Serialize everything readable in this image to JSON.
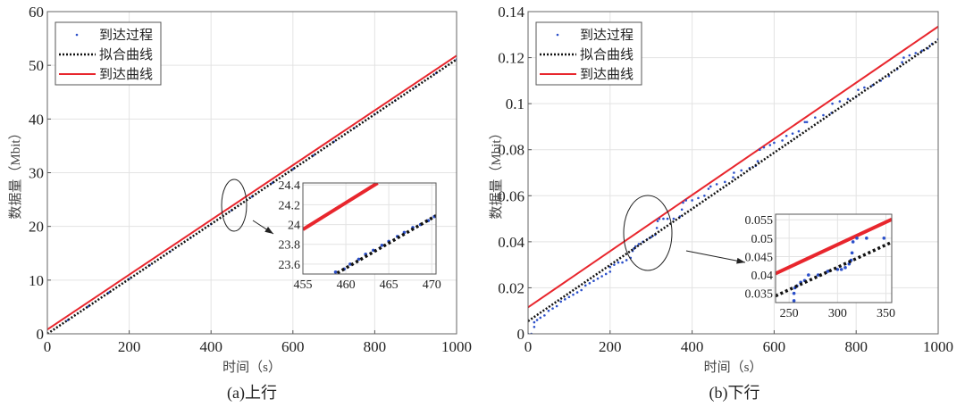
{
  "colors": {
    "arrival_points": "#2b4fc9",
    "fit_line": "#111111",
    "arrival_curve": "#e8262d",
    "grid": "#e3e3e3"
  },
  "chart_data": [
    {
      "type": "line",
      "caption": "(a)上行",
      "xlabel": "时间（s）",
      "ylabel": "数据量（Mbit）",
      "xlim": [
        0,
        1000
      ],
      "ylim": [
        0,
        60
      ],
      "xticks": [
        "0",
        "200",
        "400",
        "600",
        "800",
        "1000"
      ],
      "yticks": [
        "0",
        "10",
        "20",
        "30",
        "40",
        "50",
        "60"
      ],
      "grid": true,
      "legend": {
        "placement": "top-left",
        "entries": [
          "到达过程",
          "拟合曲线",
          "到达曲线"
        ]
      },
      "series": [
        {
          "name": "到达过程",
          "style": "points",
          "x": [
            0,
            50,
            100,
            150,
            200,
            250,
            300,
            350,
            400,
            450,
            500,
            550,
            600,
            650,
            700,
            750,
            800,
            850,
            900,
            950,
            1000
          ],
          "y": [
            0,
            2.56,
            5.11,
            7.67,
            10.22,
            12.78,
            15.33,
            17.89,
            20.44,
            23.0,
            25.55,
            28.11,
            30.66,
            33.22,
            35.77,
            38.33,
            40.88,
            43.44,
            45.99,
            48.55,
            51.1
          ]
        },
        {
          "name": "拟合曲线",
          "style": "dotted",
          "x": [
            0,
            1000
          ],
          "y": [
            0,
            51.1
          ]
        },
        {
          "name": "到达曲线",
          "style": "solid",
          "x": [
            0,
            1000
          ],
          "y": [
            0.8,
            51.8
          ]
        }
      ],
      "inset": {
        "xlim": [
          455,
          470.5
        ],
        "ylim": [
          23.5,
          24.42
        ],
        "xticks": [
          "455",
          "460",
          "465",
          "470"
        ],
        "yticks": [
          "23.6",
          "23.8",
          "24",
          "24.2",
          "24.4"
        ],
        "points": {
          "x": [
            458.8,
            459.8,
            460.5,
            461.5,
            462.3,
            463.2,
            464.2,
            465.0,
            466.0,
            466.8,
            467.8,
            468.7,
            469.6,
            470.3
          ],
          "y": [
            23.52,
            23.55,
            23.6,
            23.65,
            23.7,
            23.74,
            23.79,
            23.83,
            23.88,
            23.92,
            23.97,
            24.0,
            24.04,
            24.08
          ]
        },
        "fit": {
          "x": [
            459,
            470.5
          ],
          "y": [
            23.51,
            24.09
          ]
        },
        "curve": {
          "x": [
            455,
            463.7
          ],
          "y": [
            23.95,
            24.42
          ]
        }
      },
      "annotation": {
        "zoom_center": [
          460,
          24
        ]
      }
    },
    {
      "type": "line",
      "caption": "(b)下行",
      "xlabel": "时间（s）",
      "ylabel": "数据量（Mbit）",
      "xlim": [
        0,
        1000
      ],
      "ylim": [
        0,
        0.14
      ],
      "xticks": [
        "0",
        "200",
        "400",
        "600",
        "800",
        "1000"
      ],
      "yticks": [
        "0",
        "0.02",
        "0.04",
        "0.06",
        "0.08",
        "0.1",
        "0.12",
        "0.14"
      ],
      "grid": true,
      "legend": {
        "placement": "top-left",
        "entries": [
          "到达过程",
          "拟合曲线",
          "到达曲线"
        ]
      },
      "series": [
        {
          "name": "到达过程",
          "style": "points",
          "x": [
            0,
            8,
            15,
            15,
            22,
            30,
            40,
            50,
            60,
            70,
            80,
            90,
            100,
            110,
            120,
            130,
            140,
            150,
            160,
            170,
            180,
            190,
            200,
            200,
            210,
            220,
            230,
            240,
            250,
            255,
            258,
            262,
            270,
            280,
            290,
            300,
            310,
            314,
            316,
            320,
            330,
            340,
            355,
            370,
            375,
            378,
            385,
            400,
            415,
            430,
            440,
            445,
            460,
            480,
            500,
            502,
            520,
            540,
            555,
            560,
            565,
            575,
            590,
            600,
            620,
            630,
            645,
            660,
            675,
            680,
            700,
            720,
            740,
            742,
            760,
            780,
            800,
            805,
            820,
            840,
            860,
            880,
            900,
            912,
            916,
            930,
            945,
            960,
            975,
            985,
            1000
          ],
          "y": [
            0,
            0,
            0.003,
            0.005,
            0.006,
            0.007,
            0.008,
            0.01,
            0.011,
            0.012,
            0.014,
            0.015,
            0.016,
            0.017,
            0.018,
            0.019,
            0.021,
            0.022,
            0.023,
            0.024,
            0.025,
            0.026,
            0.027,
            0.029,
            0.03,
            0.031,
            0.031,
            0.032,
            0.033,
            0.036,
            0.037,
            0.038,
            0.039,
            0.04,
            0.041,
            0.042,
            0.043,
            0.046,
            0.049,
            0.05,
            0.05,
            0.05,
            0.05,
            0.051,
            0.054,
            0.057,
            0.058,
            0.058,
            0.059,
            0.06,
            0.063,
            0.064,
            0.065,
            0.066,
            0.068,
            0.07,
            0.071,
            0.072,
            0.073,
            0.075,
            0.08,
            0.081,
            0.082,
            0.083,
            0.084,
            0.086,
            0.087,
            0.088,
            0.092,
            0.092,
            0.094,
            0.095,
            0.096,
            0.1,
            0.101,
            0.102,
            0.103,
            0.106,
            0.107,
            0.108,
            0.11,
            0.112,
            0.115,
            0.118,
            0.12,
            0.121,
            0.122,
            0.123,
            0.124,
            0.126,
            0.128
          ]
        },
        {
          "name": "拟合曲线",
          "style": "dotted",
          "x": [
            0,
            1000
          ],
          "y": [
            0.0055,
            0.1275
          ]
        },
        {
          "name": "到达曲线",
          "style": "solid",
          "x": [
            0,
            1000
          ],
          "y": [
            0.0115,
            0.1335
          ]
        }
      ],
      "inset": {
        "xlim": [
          236,
          356
        ],
        "ylim": [
          0.0325,
          0.0565
        ],
        "xticks": [
          "250",
          "300",
          "350"
        ],
        "yticks": [
          "0.035",
          "0.04",
          "0.045",
          "0.05",
          "0.055"
        ],
        "points": {
          "x": [
            255,
            255,
            256,
            258,
            262,
            266,
            270,
            280,
            290,
            300,
            304,
            308,
            312,
            314,
            315,
            316,
            320,
            330,
            348
          ],
          "y": [
            0.033,
            0.035,
            0.0365,
            0.037,
            0.038,
            0.0385,
            0.04,
            0.04,
            0.041,
            0.0415,
            0.0415,
            0.042,
            0.043,
            0.044,
            0.046,
            0.049,
            0.05,
            0.05,
            0.05
          ]
        },
        "fit": {
          "x": [
            236,
            356
          ],
          "y": [
            0.0343,
            0.0489
          ]
        },
        "curve": {
          "x": [
            236,
            356
          ],
          "y": [
            0.0404,
            0.0551
          ]
        }
      },
      "annotation": {
        "zoom_center": [
          310,
          0.045
        ]
      }
    }
  ]
}
